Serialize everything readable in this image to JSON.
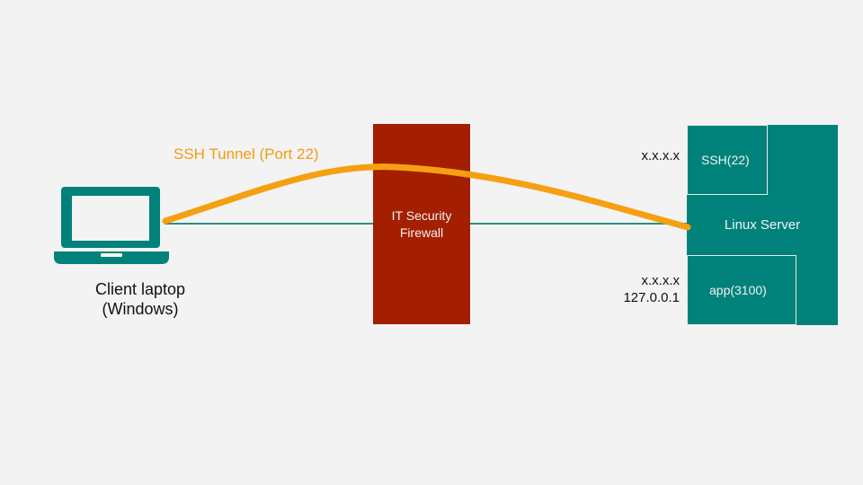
{
  "colors": {
    "background": "#f3f3f3",
    "teal": "#00827b",
    "firewall": "#a31f00",
    "tunnel": "#f5a011",
    "link_line": "#2f8c84"
  },
  "client": {
    "icon": "laptop-icon",
    "label_line1": "Client laptop",
    "label_line2": "(Windows)"
  },
  "tunnel": {
    "label": "SSH Tunnel (Port 22)"
  },
  "firewall": {
    "label_line1": "IT Security",
    "label_line2": "Firewall"
  },
  "server": {
    "name": "Linux Server",
    "ssh_port": "SSH(22)",
    "app_port": "app(3100)",
    "ssh_address": "x.x.x.x",
    "app_address_line1": "x.x.x.x",
    "app_address_line2": "127.0.0.1"
  }
}
